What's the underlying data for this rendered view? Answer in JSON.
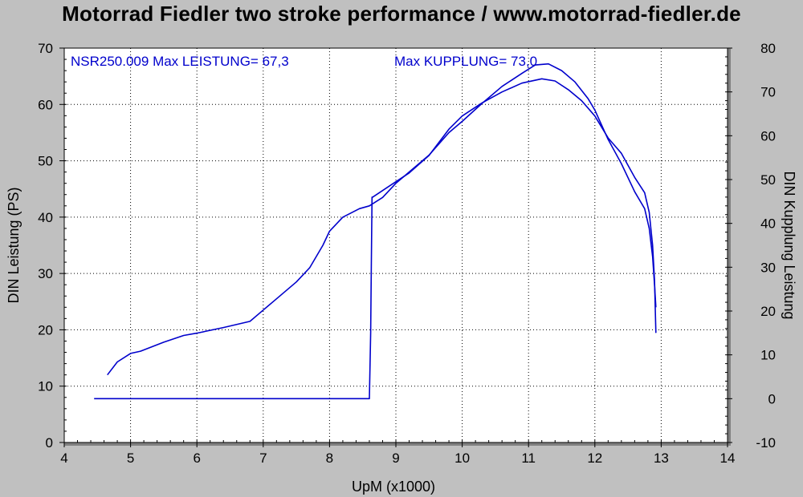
{
  "chart_data": {
    "type": "line",
    "title": "Motorrad Fiedler two stroke performance / www.motorrad-fiedler.de",
    "xlabel": "UpM (x1000)",
    "ylabel_left": "DIN Leistung (PS)",
    "ylabel_right": "DIN Kupplung Leistung",
    "xlim": [
      4,
      14
    ],
    "ylim_left": [
      0,
      70
    ],
    "ylim_right": [
      -10,
      80
    ],
    "x_ticks": [
      "4",
      "5",
      "6",
      "7",
      "8",
      "9",
      "10",
      "11",
      "12",
      "13",
      "14"
    ],
    "y_ticks_left": [
      "0",
      "10",
      "20",
      "30",
      "40",
      "50",
      "60",
      "70"
    ],
    "y_ticks_right": [
      "-10",
      "0",
      "10",
      "20",
      "30",
      "40",
      "50",
      "60",
      "70",
      "80"
    ],
    "grid": true,
    "line_color": "#0000cc",
    "annotations": {
      "leistung": "NSR250.009  Max LEISTUNG= 67,3",
      "kupplung": "Max KUPPLUNG= 73,0"
    },
    "series": [
      {
        "axis": "left",
        "x": [
          4.65,
          4.8,
          5.0,
          5.15,
          5.5,
          5.8,
          6.0,
          6.4,
          6.8,
          7.0,
          7.2,
          7.5,
          7.7,
          7.9,
          8.0,
          8.2,
          8.45,
          8.6,
          8.8,
          9.0,
          9.2,
          9.5,
          9.8,
          10.0,
          10.3,
          10.6,
          10.9,
          11.1,
          11.3,
          11.5,
          11.7,
          11.9,
          12.0,
          12.2,
          12.4,
          12.6,
          12.75,
          12.82,
          12.87,
          12.9,
          12.92
        ],
        "y": [
          12.0,
          14.3,
          15.8,
          16.2,
          17.8,
          19.0,
          19.4,
          20.4,
          21.5,
          23.5,
          25.5,
          28.5,
          31.0,
          35.0,
          37.5,
          40.0,
          41.5,
          42.0,
          43.5,
          46.0,
          48.0,
          51.0,
          55.0,
          57.0,
          60.2,
          63.2,
          65.5,
          67.0,
          67.2,
          66.0,
          64.0,
          61.0,
          59.0,
          53.8,
          49.5,
          44.5,
          41.5,
          38.0,
          33.0,
          28.0,
          24.0
        ]
      },
      {
        "axis": "right",
        "x": [
          4.45,
          8.6,
          8.62,
          8.63,
          8.64,
          8.65,
          8.9,
          9.2,
          9.5,
          9.8,
          10.0,
          10.3,
          10.6,
          10.9,
          11.2,
          11.4,
          11.6,
          11.8,
          12.0,
          12.2,
          12.4,
          12.6,
          12.75,
          12.82,
          12.87,
          12.9,
          12.92
        ],
        "y": [
          0,
          0,
          15,
          30,
          46,
          46,
          48.5,
          51.5,
          55.5,
          61.5,
          64.5,
          67.5,
          70.0,
          72.0,
          73.0,
          72.5,
          70.5,
          68.0,
          64.5,
          59.5,
          56.0,
          50.5,
          47.0,
          42.5,
          35.0,
          27.0,
          15.0
        ]
      }
    ]
  }
}
